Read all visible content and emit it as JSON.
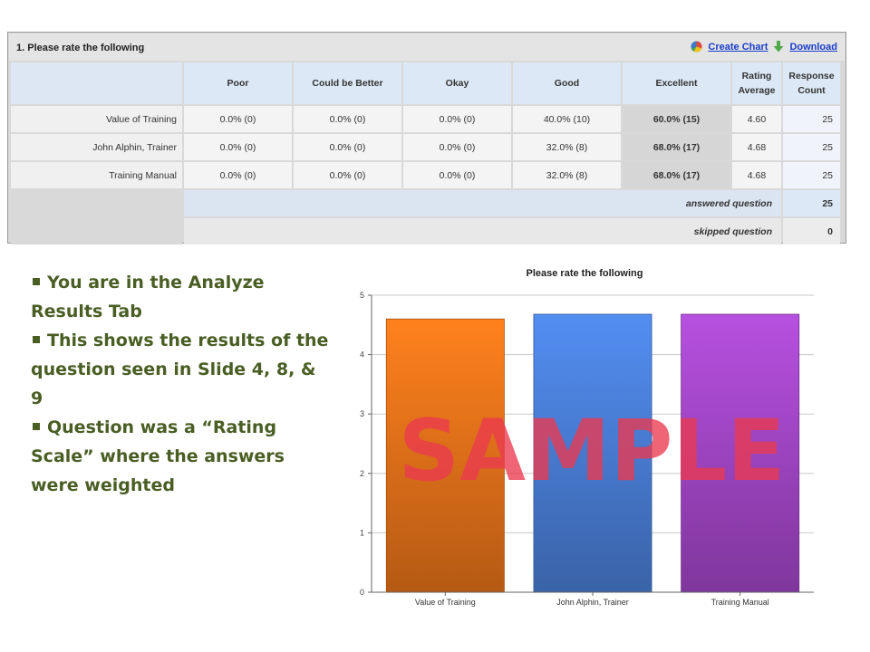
{
  "question": {
    "title": "1. Please rate the following",
    "create_chart_label": "Create Chart",
    "download_label": "Download"
  },
  "table": {
    "columns": [
      "Poor",
      "Could be Better",
      "Okay",
      "Good",
      "Excellent"
    ],
    "avg_header": [
      "Rating",
      "Average"
    ],
    "count_header": [
      "Response",
      "Count"
    ],
    "rows": [
      {
        "label": "Value of Training",
        "cells": [
          "0.0% (0)",
          "0.0% (0)",
          "0.0% (0)",
          "40.0% (10)",
          "60.0% (15)"
        ],
        "max_index": 4,
        "avg": "4.60",
        "count": "25"
      },
      {
        "label": "John Alphin, Trainer",
        "cells": [
          "0.0% (0)",
          "0.0% (0)",
          "0.0% (0)",
          "32.0% (8)",
          "68.0% (17)"
        ],
        "max_index": 4,
        "avg": "4.68",
        "count": "25"
      },
      {
        "label": "Training Manual",
        "cells": [
          "0.0% (0)",
          "0.0% (0)",
          "0.0% (0)",
          "32.0% (8)",
          "68.0% (17)"
        ],
        "max_index": 4,
        "avg": "4.68",
        "count": "25"
      }
    ],
    "answered_label": "answered question",
    "answered_value": "25",
    "skipped_label": "skipped question",
    "skipped_value": "0"
  },
  "bullets": [
    "You are in the Analyze Results Tab",
    "This shows the results of the question seen in Slide 4, 8, & 9",
    "Question was a “Rating Scale” where the answers were weighted"
  ],
  "chart_data": {
    "type": "bar",
    "title": "Please rate the following",
    "categories": [
      "Value of Training",
      "John Alphin, Trainer",
      "Training Manual"
    ],
    "values": [
      4.6,
      4.68,
      4.68
    ],
    "colors": [
      "#e8731a",
      "#4a7fd8",
      "#a347c8"
    ],
    "ylim": [
      0,
      5
    ],
    "yticks": [
      0,
      1,
      2,
      3,
      4,
      5
    ],
    "grid": true,
    "xlabel": "",
    "ylabel": "",
    "watermark": "SAMPLE",
    "watermark_color": "#ea3a50"
  }
}
